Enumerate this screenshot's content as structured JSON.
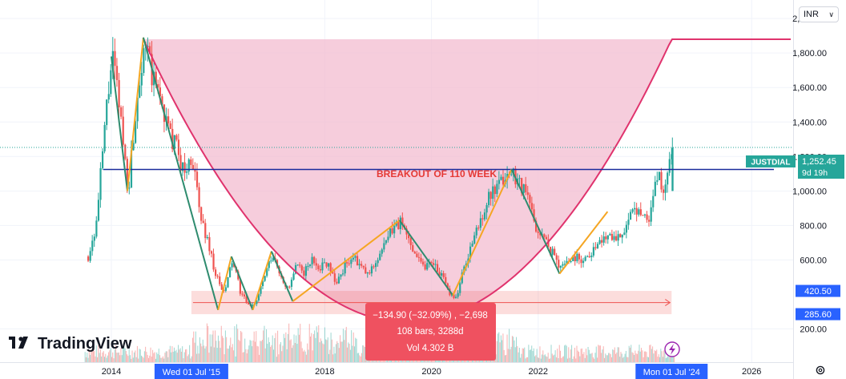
{
  "currency_selector": {
    "value": "INR"
  },
  "branding": {
    "logo_text": "TradingView"
  },
  "colors": {
    "up_candle": "#26a69a",
    "down_candle": "#ef5350",
    "cup_fill": "#f3bcd0",
    "cup_curve": "#e0336d",
    "breakout_line": "#1a2b9c",
    "zigzag_down": "#2e8b6e",
    "zigzag_up": "#f5a623",
    "axis_marker": "#2962ff"
  },
  "chart_data": {
    "type": "candlestick",
    "symbol": "JUSTDIAL",
    "price_axis": {
      "ticks": [
        "2,000.00",
        "1,800.00",
        "1,600.00",
        "1,400.00",
        "1,200.00",
        "1,000.00",
        "800.00",
        "600.00",
        "200.00"
      ],
      "ylim": [
        150,
        2060
      ]
    },
    "time_axis": {
      "ticks": [
        "2014",
        "2018",
        "2020",
        "2022",
        "2026"
      ],
      "range": [
        2013.6,
        2027.0
      ]
    },
    "last_price": {
      "symbol": "JUSTDIAL",
      "value": "1,252.45",
      "countdown": "9d 19h"
    },
    "price_markers": [
      "420.50",
      "285.60"
    ],
    "date_markers": [
      "Wed 01 Jul '15",
      "Mon 01 Jul '24"
    ],
    "breakout": {
      "label": "BREAKOUT OF 110 WEEK",
      "level": 1125
    },
    "cup_rim_level": 1880,
    "measure_range": {
      "from": 285.6,
      "to": 420.5,
      "start_year": 2015.5,
      "end_year": 2024.5
    },
    "measure_tooltip": {
      "line1": "−134.90 (−32.09%) , −2,698",
      "line2": "108 bars, 3288d",
      "line3": "Vol 4.302 B"
    },
    "zigzag": [
      {
        "x": 2014.0,
        "y": 1780,
        "dir": "down"
      },
      {
        "x": 2014.3,
        "y": 1000,
        "dir": "up"
      },
      {
        "x": 2014.6,
        "y": 1890,
        "dir": "down"
      },
      {
        "x": 2016.0,
        "y": 310,
        "dir": "up"
      },
      {
        "x": 2016.25,
        "y": 620,
        "dir": "down"
      },
      {
        "x": 2016.65,
        "y": 310,
        "dir": "up"
      },
      {
        "x": 2017.0,
        "y": 650,
        "dir": "down"
      },
      {
        "x": 2017.4,
        "y": 360,
        "dir": "up"
      },
      {
        "x": 2019.4,
        "y": 830,
        "dir": "down"
      },
      {
        "x": 2020.4,
        "y": 395,
        "dir": "up"
      },
      {
        "x": 2021.5,
        "y": 1125,
        "dir": "down"
      },
      {
        "x": 2022.4,
        "y": 520,
        "dir": "up"
      },
      {
        "x": 2023.3,
        "y": 880,
        "dir": "none"
      }
    ],
    "price_series": [
      {
        "x": 2013.55,
        "close": 620
      },
      {
        "x": 2013.7,
        "close": 800
      },
      {
        "x": 2013.8,
        "close": 1150
      },
      {
        "x": 2013.9,
        "close": 1500
      },
      {
        "x": 2014.0,
        "close": 1780
      },
      {
        "x": 2014.15,
        "close": 1450
      },
      {
        "x": 2014.3,
        "close": 1000
      },
      {
        "x": 2014.45,
        "close": 1500
      },
      {
        "x": 2014.6,
        "close": 1890
      },
      {
        "x": 2014.75,
        "close": 1650
      },
      {
        "x": 2014.9,
        "close": 1550
      },
      {
        "x": 2015.05,
        "close": 1350
      },
      {
        "x": 2015.2,
        "close": 1250
      },
      {
        "x": 2015.35,
        "close": 1100
      },
      {
        "x": 2015.5,
        "close": 1200
      },
      {
        "x": 2015.65,
        "close": 850
      },
      {
        "x": 2015.8,
        "close": 700
      },
      {
        "x": 2015.95,
        "close": 500
      },
      {
        "x": 2016.1,
        "close": 400
      },
      {
        "x": 2016.25,
        "close": 600
      },
      {
        "x": 2016.4,
        "close": 420
      },
      {
        "x": 2016.55,
        "close": 330
      },
      {
        "x": 2016.7,
        "close": 360
      },
      {
        "x": 2016.85,
        "close": 500
      },
      {
        "x": 2017.0,
        "close": 620
      },
      {
        "x": 2017.15,
        "close": 520
      },
      {
        "x": 2017.3,
        "close": 420
      },
      {
        "x": 2017.45,
        "close": 560
      },
      {
        "x": 2017.6,
        "close": 530
      },
      {
        "x": 2017.75,
        "close": 600
      },
      {
        "x": 2017.9,
        "close": 560
      },
      {
        "x": 2018.05,
        "close": 590
      },
      {
        "x": 2018.2,
        "close": 460
      },
      {
        "x": 2018.35,
        "close": 560
      },
      {
        "x": 2018.5,
        "close": 620
      },
      {
        "x": 2018.65,
        "close": 560
      },
      {
        "x": 2018.8,
        "close": 510
      },
      {
        "x": 2018.95,
        "close": 600
      },
      {
        "x": 2019.1,
        "close": 680
      },
      {
        "x": 2019.25,
        "close": 780
      },
      {
        "x": 2019.4,
        "close": 820
      },
      {
        "x": 2019.55,
        "close": 720
      },
      {
        "x": 2019.7,
        "close": 640
      },
      {
        "x": 2019.85,
        "close": 560
      },
      {
        "x": 2020.0,
        "close": 600
      },
      {
        "x": 2020.15,
        "close": 520
      },
      {
        "x": 2020.3,
        "close": 420
      },
      {
        "x": 2020.45,
        "close": 380
      },
      {
        "x": 2020.6,
        "close": 560
      },
      {
        "x": 2020.75,
        "close": 700
      },
      {
        "x": 2020.9,
        "close": 830
      },
      {
        "x": 2021.05,
        "close": 960
      },
      {
        "x": 2021.2,
        "close": 1000
      },
      {
        "x": 2021.35,
        "close": 1080
      },
      {
        "x": 2021.5,
        "close": 1110
      },
      {
        "x": 2021.65,
        "close": 1050
      },
      {
        "x": 2021.8,
        "close": 950
      },
      {
        "x": 2021.95,
        "close": 780
      },
      {
        "x": 2022.1,
        "close": 720
      },
      {
        "x": 2022.25,
        "close": 640
      },
      {
        "x": 2022.4,
        "close": 560
      },
      {
        "x": 2022.55,
        "close": 600
      },
      {
        "x": 2022.7,
        "close": 620
      },
      {
        "x": 2022.85,
        "close": 600
      },
      {
        "x": 2023.0,
        "close": 660
      },
      {
        "x": 2023.15,
        "close": 700
      },
      {
        "x": 2023.3,
        "close": 760
      },
      {
        "x": 2023.45,
        "close": 730
      },
      {
        "x": 2023.6,
        "close": 780
      },
      {
        "x": 2023.75,
        "close": 860
      },
      {
        "x": 2023.9,
        "close": 900
      },
      {
        "x": 2024.05,
        "close": 820
      },
      {
        "x": 2024.2,
        "close": 1100
      },
      {
        "x": 2024.35,
        "close": 1000
      },
      {
        "x": 2024.5,
        "close": 1252
      }
    ]
  }
}
